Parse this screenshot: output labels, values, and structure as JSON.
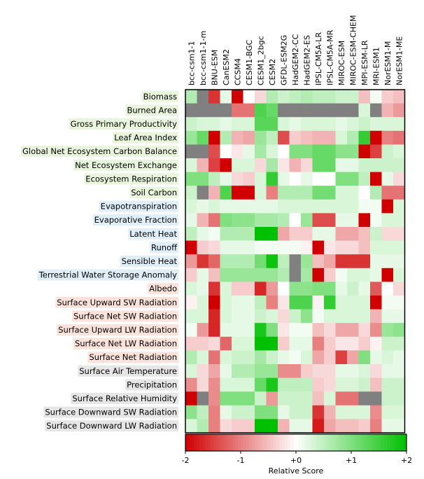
{
  "chart_data": {
    "type": "heatmap",
    "title": "",
    "models": [
      "bcc-csm1-1",
      "bcc-csm1-1-m",
      "BNU-ESM",
      "CanESM2",
      "CCSM4",
      "CESM1-BGC",
      "CESM1_2bgc",
      "CESM2",
      "GFDL-ESM2G",
      "HadGEM2-CC",
      "HadGEM2-ES",
      "IPSL-CM5A-LR",
      "IPSL-CM5A-MR",
      "MIROC-ESM",
      "MIROC-ESM-CHEM",
      "MPI-ESM-LR",
      "MRI-ESM1",
      "NorESM1-M",
      "NorESM1-ME"
    ],
    "variables": [
      {
        "name": "Biomass",
        "group": "ecosystem"
      },
      {
        "name": "Burned Area",
        "group": "ecosystem"
      },
      {
        "name": "Gross Primary Productivity",
        "group": "ecosystem"
      },
      {
        "name": "Leaf Area Index",
        "group": "ecosystem"
      },
      {
        "name": "Global Net Ecosystem Carbon Balance",
        "group": "ecosystem"
      },
      {
        "name": "Net Ecosystem Exchange",
        "group": "ecosystem"
      },
      {
        "name": "Ecosystem Respiration",
        "group": "ecosystem"
      },
      {
        "name": "Soil Carbon",
        "group": "ecosystem"
      },
      {
        "name": "Evapotranspiration",
        "group": "hydrology"
      },
      {
        "name": "Evaporative Fraction",
        "group": "hydrology"
      },
      {
        "name": "Latent Heat",
        "group": "hydrology"
      },
      {
        "name": "Runoff",
        "group": "hydrology"
      },
      {
        "name": "Sensible Heat",
        "group": "hydrology"
      },
      {
        "name": "Terrestrial Water Storage Anomaly",
        "group": "hydrology"
      },
      {
        "name": "Albedo",
        "group": "radiation"
      },
      {
        "name": "Surface Upward SW Radiation",
        "group": "radiation"
      },
      {
        "name": "Surface Net SW Radiation",
        "group": "radiation"
      },
      {
        "name": "Surface Upward LW Radiation",
        "group": "radiation"
      },
      {
        "name": "Surface Net LW Radiation",
        "group": "radiation"
      },
      {
        "name": "Surface Net Radiation",
        "group": "radiation"
      },
      {
        "name": "Surface Air Temperature",
        "group": "forcing"
      },
      {
        "name": "Precipitation",
        "group": "forcing"
      },
      {
        "name": "Surface Relative Humidity",
        "group": "forcing"
      },
      {
        "name": "Surface Downward SW Radiation",
        "group": "forcing"
      },
      {
        "name": "Surface Downward LW Radiation",
        "group": "forcing"
      }
    ],
    "group_colors": {
      "ecosystem": "#e8f5dc",
      "hydrology": "#e0eef8",
      "radiation": "#fbe3dc",
      "forcing": "#e6e6e6"
    },
    "missing_color": "#808080",
    "scores": [
      [
        0.6,
        null,
        -1.6,
        0.2,
        -2,
        0,
        -0.3,
        0.6,
        0.4,
        0.5,
        0.6,
        0.5,
        0.5,
        0.4,
        0.4,
        -0.5,
        0.1,
        -0.4,
        -0.5
      ],
      [
        null,
        null,
        null,
        null,
        -1.1,
        -1.1,
        1.4,
        1.2,
        null,
        null,
        null,
        null,
        null,
        null,
        null,
        0.3,
        null,
        -0.6,
        -0.8
      ],
      [
        0.4,
        0.3,
        0.3,
        0.2,
        0.3,
        0.3,
        1.3,
        1.3,
        0.3,
        0.2,
        0.3,
        0.3,
        0.3,
        0.2,
        0.3,
        0.4,
        0.3,
        0.3,
        0.3
      ],
      [
        0.8,
        1.2,
        -2,
        0.6,
        -0.6,
        -0.7,
        0.8,
        0.5,
        -1.4,
        -0.4,
        -0.5,
        -0.6,
        -0.6,
        0.3,
        0.6,
        1.6,
        -2,
        -1,
        -1.1
      ],
      [
        null,
        null,
        -1.4,
        0,
        -0.2,
        0.2,
        0.7,
        0.3,
        0,
        1,
        1,
        1.2,
        1.2,
        0.9,
        0.9,
        -2,
        -1.5,
        0.4,
        0.3
      ],
      [
        0.3,
        -0.6,
        -1.5,
        -2,
        0.3,
        0.3,
        -0.3,
        0.7,
        -0.2,
        -0.6,
        -0.3,
        1.2,
        1.2,
        0.2,
        0.2,
        0.4,
        0.4,
        0.4,
        0.4
      ],
      [
        1,
        1,
        0.5,
        0.2,
        -0.3,
        -0.4,
        0.3,
        1.6,
        0.2,
        0,
        0.2,
        0,
        0,
        1,
        1,
        0.5,
        -2,
        0.2,
        -0.3
      ],
      [
        0.4,
        null,
        -0.6,
        1.4,
        -2,
        -2,
        0.3,
        -1,
        0.6,
        0.6,
        0.6,
        1.1,
        1.1,
        0.3,
        0.3,
        0,
        0.6,
        -1.1,
        -1.1
      ],
      [
        0.3,
        0.2,
        0.3,
        0.2,
        0.2,
        0.2,
        0.2,
        0.2,
        0.3,
        0.3,
        0.3,
        0.3,
        0.3,
        0.3,
        0.3,
        0.1,
        0.1,
        -2,
        0.3
      ],
      [
        0.2,
        -0.6,
        -1.1,
        1,
        0.9,
        0.9,
        0.7,
        0.7,
        0.6,
        0,
        0.8,
        -1.4,
        -1.4,
        0.2,
        0.2,
        -2,
        0.1,
        0.3,
        0.3
      ],
      [
        0.5,
        0.2,
        0.1,
        0.6,
        0.6,
        0.6,
        2,
        2,
        -0.7,
        -0.4,
        -0.4,
        0.2,
        0.2,
        -0.7,
        -0.7,
        -0.5,
        0.4,
        -0.3,
        -0.3
      ],
      [
        -2,
        -0.4,
        -0.3,
        0.2,
        0.2,
        0.2,
        0.1,
        0.1,
        0.1,
        0.1,
        -0.1,
        -2,
        -0.2,
        -0.3,
        -0.3,
        -0.5,
        0.3,
        0.3,
        0.3
      ],
      [
        -0.8,
        -1.6,
        -1.2,
        0.6,
        0.6,
        0.6,
        1.1,
        1.9,
        0.5,
        null,
        0.8,
        -0.5,
        -0.7,
        -1.6,
        -1.6,
        -1.6,
        0.2,
        0.2,
        0.2
      ],
      [
        -0.4,
        0.2,
        -0.5,
        0.8,
        0.8,
        0.8,
        0.8,
        0.8,
        0.6,
        null,
        0.7,
        -2,
        -0.4,
        0.1,
        0.3,
        0.3,
        0.2,
        -2,
        0.3
      ],
      [
        0.3,
        0.2,
        -1.6,
        0.3,
        -0.4,
        -0.4,
        -1.7,
        -0.8,
        0,
        0.9,
        0.9,
        1,
        1,
        0.2,
        0.4,
        0.2,
        -1.3,
        0,
        -0.3
      ],
      [
        -0.1,
        0.3,
        -2,
        0.3,
        0.2,
        0.2,
        0.5,
        -1,
        -0.2,
        1.4,
        1.4,
        -0.1,
        1.6,
        0.3,
        0.3,
        0.3,
        -2,
        0.1,
        0.1
      ],
      [
        0.3,
        0.3,
        -1.7,
        0.3,
        0.2,
        0.2,
        0.4,
        0.3,
        -0.3,
        0.4,
        0.9,
        0.1,
        0.3,
        0.3,
        0.3,
        0.3,
        -0.6,
        0.2,
        0.2
      ],
      [
        0.1,
        -0.8,
        -1.7,
        0.2,
        0.2,
        0.2,
        1.8,
        1,
        -0.2,
        0.1,
        0.1,
        -0.5,
        -0.3,
        -0.7,
        -0.7,
        -0.3,
        -0.9,
        0.8,
        0.9
      ],
      [
        -0.4,
        -0.4,
        -0.3,
        -1.2,
        0.3,
        0.3,
        2,
        2,
        -0.4,
        0.2,
        0.2,
        -1,
        -0.4,
        -0.2,
        -0.2,
        -0.4,
        -0.1,
        0.4,
        0.4
      ],
      [
        0.6,
        0.3,
        -1.1,
        0.3,
        0.4,
        0.4,
        0.7,
        0.4,
        0.2,
        0.1,
        0.3,
        -0.7,
        -0.4,
        -1.5,
        -0.7,
        1,
        0.2,
        0.3,
        0.2
      ],
      [
        0.3,
        -0.3,
        -0.7,
        0.2,
        0.6,
        0.6,
        0.8,
        0.8,
        -0.9,
        -0.9,
        -0.4,
        -0.3,
        -0.3,
        0.2,
        0.2,
        0.3,
        -0.3,
        0.2,
        0.2
      ],
      [
        -0.9,
        -0.3,
        -0.9,
        0.3,
        0.3,
        0.3,
        1.2,
        1.8,
        0.5,
        0.5,
        0.5,
        -0.4,
        -0.3,
        0.3,
        0.3,
        0.4,
        -0.5,
        0.4,
        0.4
      ],
      [
        -2,
        null,
        -0.9,
        1,
        1,
        1,
        0.4,
        -0.8,
        0.4,
        0.4,
        0.4,
        -0.5,
        0.3,
        -1.1,
        -1.1,
        null,
        null,
        0.4,
        0.4
      ],
      [
        0.9,
        0.5,
        -1,
        0.2,
        0.4,
        0.4,
        1,
        1,
        0.2,
        0.4,
        0.4,
        -1.6,
        -0.6,
        0.3,
        0.3,
        0.3,
        -0.9,
        0.3,
        0.3
      ],
      [
        0.3,
        0.6,
        -1,
        -0.3,
        -0.4,
        -0.4,
        2,
        2,
        -0.6,
        0.2,
        0.2,
        -1.8,
        -0.7,
        -0.5,
        -0.5,
        -0.4,
        -1,
        0.2,
        0.2
      ]
    ],
    "colorbar": {
      "label": "Relative Score",
      "range": [
        -2,
        2
      ],
      "ticks": [
        -2,
        -1,
        0,
        1,
        2
      ],
      "tick_labels": [
        "-2",
        "-1",
        "+0",
        "+1",
        "+2"
      ],
      "low_color": "#d00000",
      "mid_color": "#ffffff",
      "high_color": "#00c000"
    }
  }
}
